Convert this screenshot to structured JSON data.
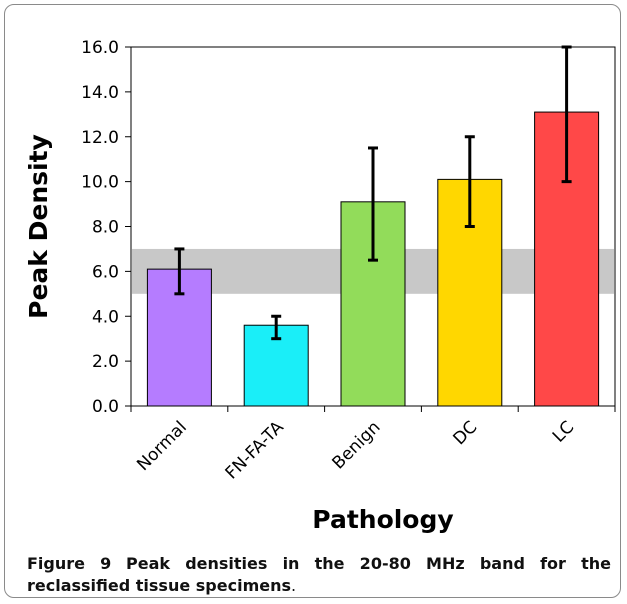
{
  "chart_data": {
    "type": "bar",
    "categories": [
      "Normal",
      "FN-FA-TA",
      "Benign",
      "DC",
      "LC"
    ],
    "values": [
      6.1,
      3.6,
      9.1,
      10.1,
      13.1
    ],
    "error_low": [
      5.0,
      3.0,
      6.5,
      8.0,
      10.0
    ],
    "error_high": [
      7.0,
      4.0,
      11.5,
      12.0,
      16.0
    ],
    "colors": [
      "#b57cff",
      "#1aeef8",
      "#92dc5a",
      "#ffd700",
      "#ff4848"
    ],
    "reference_band": [
      5.0,
      7.0
    ],
    "band_color": "#c8c8c8",
    "xlabel": "Pathology",
    "ylabel": "Peak Density",
    "ylim": [
      0,
      16
    ],
    "yticks": [
      "0.0",
      "2.0",
      "4.0",
      "6.0",
      "8.0",
      "10.0",
      "12.0",
      "14.0",
      "16.0"
    ],
    "grid": false
  },
  "caption": {
    "figure_label": "Figure 9",
    "text": "Peak densities in the 20-80 MHz band for the reclassified tissue specimens",
    "end": "."
  }
}
